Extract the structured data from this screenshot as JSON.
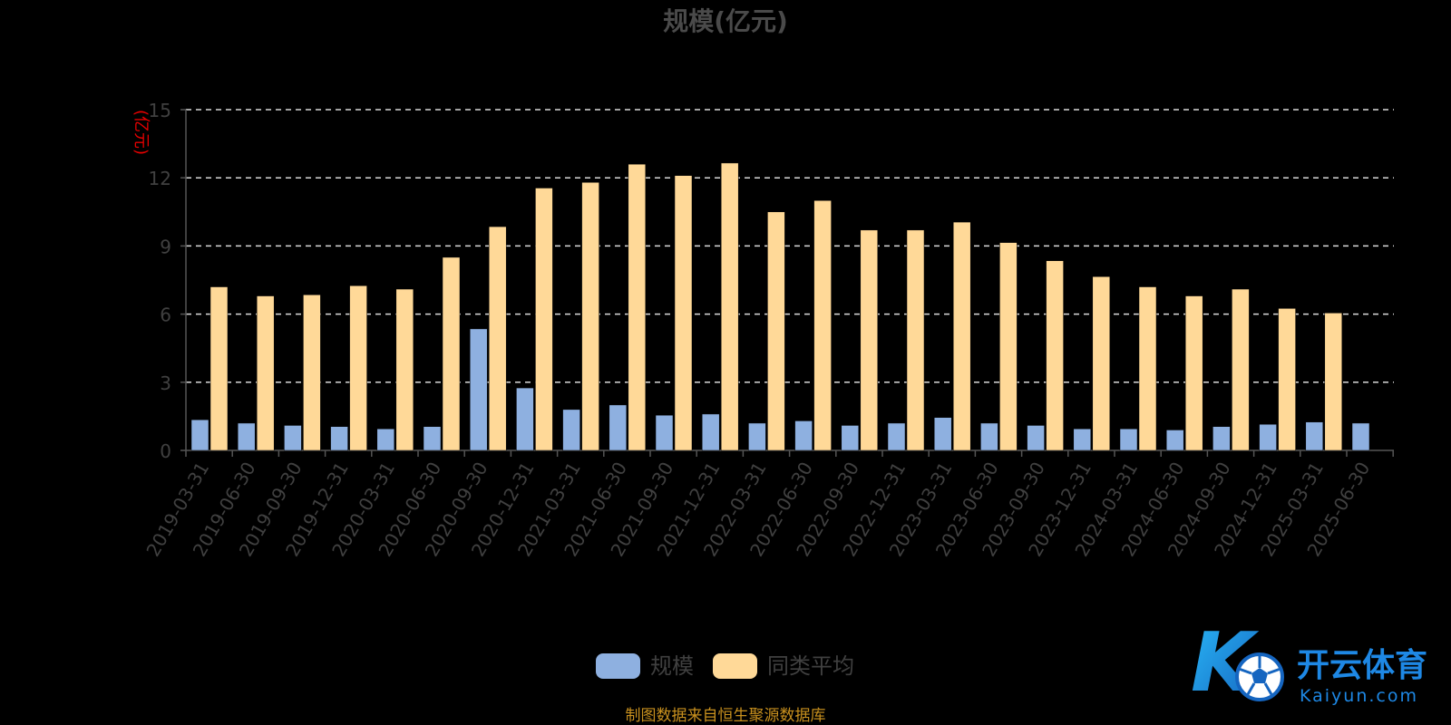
{
  "chart_data": {
    "type": "bar",
    "title": "规模(亿元)",
    "ylabel": "(亿元)",
    "ylim": [
      0,
      15
    ],
    "yticks": [
      0,
      3,
      6,
      9,
      12,
      15
    ],
    "grid": true,
    "legend_position": "bottom-center",
    "categories": [
      "2019-03-31",
      "2019-06-30",
      "2019-09-30",
      "2019-12-31",
      "2020-03-31",
      "2020-06-30",
      "2020-09-30",
      "2020-12-31",
      "2021-03-31",
      "2021-06-30",
      "2021-09-30",
      "2021-12-31",
      "2022-03-31",
      "2022-06-30",
      "2022-09-30",
      "2022-12-31",
      "2023-03-31",
      "2023-06-30",
      "2023-09-30",
      "2023-12-31",
      "2024-03-31",
      "2024-06-30",
      "2024-09-30",
      "2024-12-31",
      "2025-03-31",
      "2025-06-30"
    ],
    "series": [
      {
        "name": "规模",
        "color": "#8eb0e0",
        "values": [
          1.35,
          1.2,
          1.1,
          1.05,
          0.95,
          1.05,
          5.35,
          2.75,
          1.8,
          2.0,
          1.55,
          1.6,
          1.2,
          1.3,
          1.1,
          1.2,
          1.45,
          1.2,
          1.1,
          0.95,
          0.95,
          0.9,
          1.05,
          1.15,
          1.25,
          1.2
        ]
      },
      {
        "name": "同类平均",
        "color": "#ffd998",
        "values": [
          7.2,
          6.8,
          6.85,
          7.25,
          7.1,
          8.5,
          9.85,
          11.55,
          11.8,
          12.6,
          12.1,
          12.65,
          10.5,
          11.0,
          9.7,
          9.7,
          10.05,
          9.15,
          8.35,
          7.65,
          7.2,
          6.8,
          7.1,
          6.25,
          6.05,
          null
        ]
      }
    ]
  },
  "footer": {
    "source": "制图数据来自恒生聚源数据库"
  },
  "watermark": {
    "cn": "开云体育",
    "en": "Kaiyun.com",
    "mark": "K"
  },
  "colors": {
    "grid": "#d9d9d9",
    "axis": "#555555",
    "accent": "#1e88e5"
  }
}
